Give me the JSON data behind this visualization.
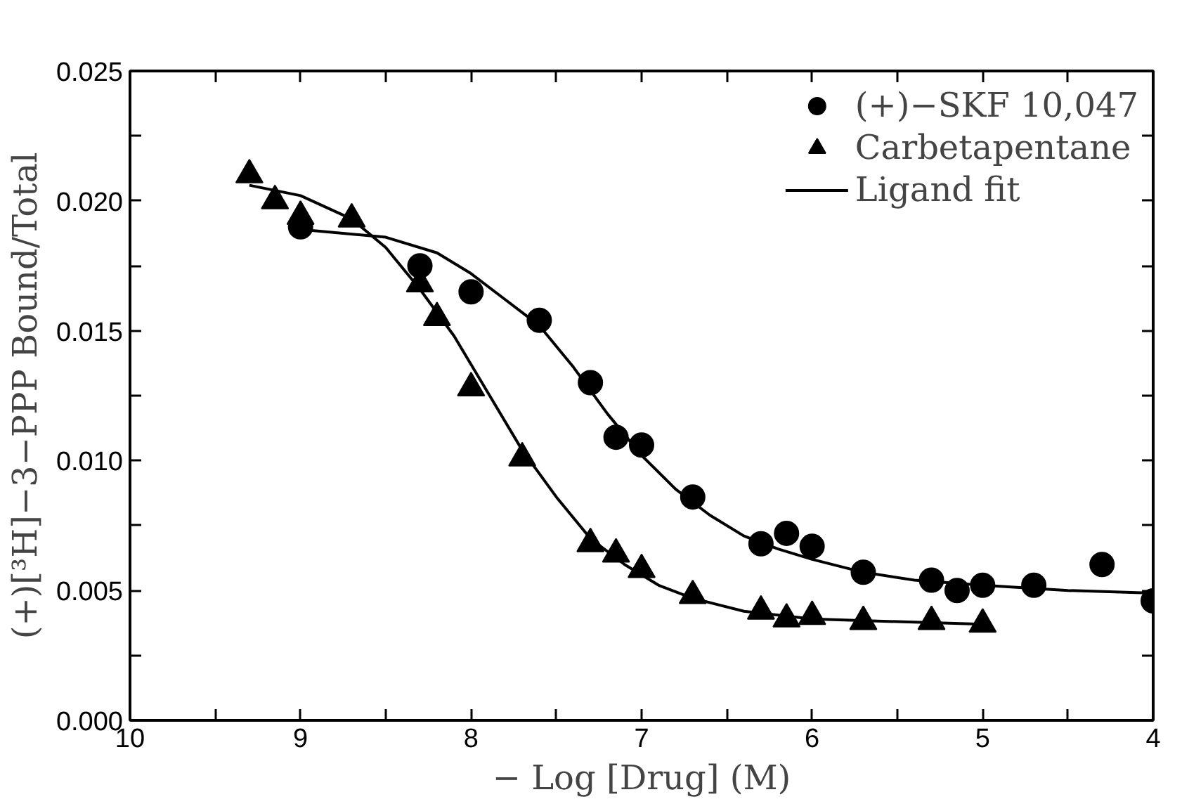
{
  "chart_data": {
    "type": "scatter",
    "xlabel": "− Log [Drug] (M)",
    "ylabel": "(+)[³H]−3−PPP Bound/Total",
    "xlim": [
      10,
      4
    ],
    "ylim": [
      0,
      0.025
    ],
    "xticks": [
      10,
      {
        "value": 9.5,
        "label": null
      },
      9,
      {
        "value": 8.5,
        "label": null
      },
      8,
      {
        "value": 7.5,
        "label": null
      },
      7,
      {
        "value": 6.5,
        "label": null
      },
      6,
      {
        "value": 5.5,
        "label": null
      },
      5,
      {
        "value": 4.5,
        "label": null
      },
      4
    ],
    "yticks": [
      {
        "value": 0,
        "label": "0.000"
      },
      {
        "value": 0.0025,
        "label": null
      },
      {
        "value": 0.005,
        "label": "0.005"
      },
      {
        "value": 0.0075,
        "label": null
      },
      {
        "value": 0.01,
        "label": "0.010"
      },
      {
        "value": 0.0125,
        "label": null
      },
      {
        "value": 0.015,
        "label": "0.015"
      },
      {
        "value": 0.0175,
        "label": null
      },
      {
        "value": 0.02,
        "label": "0.020"
      },
      {
        "value": 0.0225,
        "label": null
      },
      {
        "value": 0.025,
        "label": "0.025"
      }
    ],
    "grid": false,
    "legend": "top right",
    "series": [
      {
        "name": "(+)−SKF 10,047",
        "marker": "circle",
        "color": "#000000",
        "x": [
          9.0,
          8.3,
          8.0,
          7.6,
          7.3,
          7.15,
          7.0,
          6.7,
          6.3,
          6.15,
          6.0,
          5.7,
          5.3,
          5.15,
          5.0,
          4.7,
          4.3,
          4.0
        ],
        "values": [
          0.019,
          0.0175,
          0.0165,
          0.0154,
          0.013,
          0.0109,
          0.0106,
          0.0086,
          0.0068,
          0.0072,
          0.0067,
          0.0057,
          0.0054,
          0.005,
          0.0052,
          0.0052,
          0.006,
          0.0046
        ]
      },
      {
        "name": "Carbetapentane",
        "marker": "triangle",
        "color": "#000000",
        "x": [
          9.3,
          9.15,
          9.0,
          8.7,
          8.3,
          8.2,
          8.0,
          7.7,
          7.3,
          7.15,
          7.0,
          6.7,
          6.3,
          6.15,
          6.0,
          5.7,
          5.3,
          5.0
        ],
        "values": [
          0.021,
          0.02,
          0.0194,
          0.0193,
          0.0168,
          0.0155,
          0.0128,
          0.0101,
          0.0068,
          0.0064,
          0.0058,
          0.0048,
          0.0042,
          0.0039,
          0.004,
          0.0038,
          0.0038,
          0.0037
        ]
      },
      {
        "name": "Ligand fit",
        "type": "line",
        "line_style": "solid",
        "color": "#000000",
        "x": [
          9.0,
          8.5,
          8.2,
          8.0,
          7.8,
          7.6,
          7.4,
          7.2,
          7.0,
          6.8,
          6.6,
          6.4,
          6.2,
          6.0,
          5.7,
          5.4,
          5.0,
          4.5,
          4.0
        ],
        "values": [
          0.0189,
          0.0186,
          0.018,
          0.0172,
          0.0162,
          0.0152,
          0.0136,
          0.0118,
          0.0102,
          0.0089,
          0.0079,
          0.0071,
          0.0066,
          0.0062,
          0.0057,
          0.0054,
          0.0052,
          0.005,
          0.0049
        ]
      },
      {
        "type": "line",
        "line_style": "solid",
        "color": "#000000",
        "x": [
          9.3,
          9.0,
          8.7,
          8.5,
          8.3,
          8.1,
          7.9,
          7.7,
          7.5,
          7.3,
          7.1,
          6.9,
          6.7,
          6.4,
          6.0,
          5.5,
          5.0
        ],
        "values": [
          0.0206,
          0.0202,
          0.0193,
          0.0182,
          0.0166,
          0.0148,
          0.0126,
          0.0104,
          0.0086,
          0.007,
          0.006,
          0.0052,
          0.0047,
          0.0042,
          0.0039,
          0.0038,
          0.0037
        ]
      }
    ]
  }
}
